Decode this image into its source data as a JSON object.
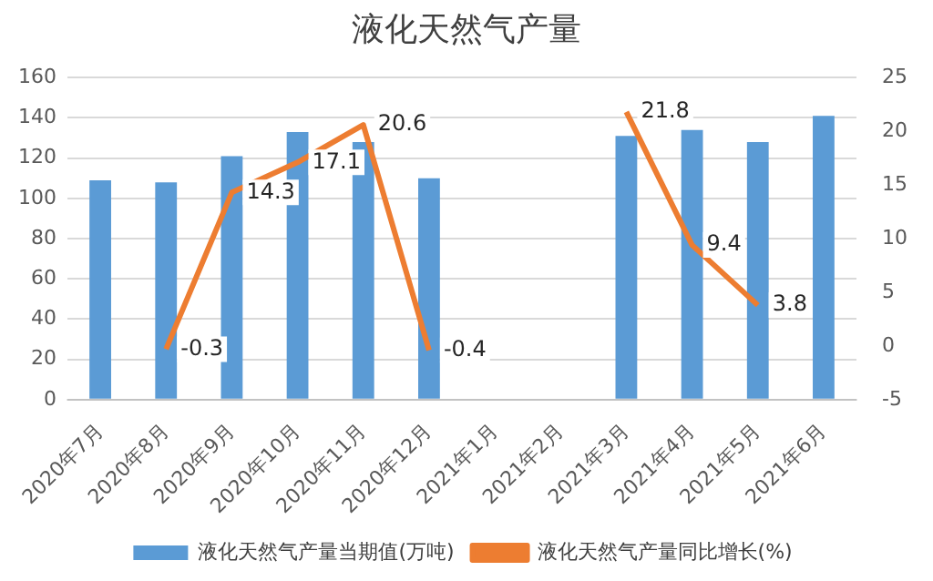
{
  "chart_data": {
    "type": "bar",
    "title": "液化天然气产量",
    "categories": [
      "2020年7月",
      "2020年8月",
      "2020年9月",
      "2020年10月",
      "2020年11月",
      "2020年12月",
      "2021年1月",
      "2021年2月",
      "2021年3月",
      "2021年4月",
      "2021年5月",
      "2021年6月"
    ],
    "series": [
      {
        "name": "液化天然气产量当期值(万吨)",
        "color": "#5b9bd5",
        "values": [
          109,
          108,
          121,
          133,
          128,
          110,
          null,
          null,
          131,
          134,
          128,
          141
        ]
      },
      {
        "name": "液化天然气产量同比增长(%)",
        "type": "line",
        "axis": "y2",
        "color": "#ed7d31",
        "values": [
          null,
          -0.3,
          14.3,
          17.1,
          20.6,
          -0.4,
          null,
          null,
          21.8,
          9.4,
          3.8,
          null
        ],
        "value_labels": [
          null,
          "-0.3",
          "14.3",
          "17.1",
          "20.6",
          "-0.4",
          null,
          null,
          "21.8",
          "9.4",
          "3.8",
          null
        ]
      }
    ],
    "ylim": [
      0,
      160
    ],
    "yticks": [
      0,
      20,
      40,
      60,
      80,
      100,
      120,
      140,
      160
    ],
    "y2lim": [
      -5,
      25
    ],
    "y2ticks": [
      -5,
      0,
      5,
      10,
      15,
      20,
      25
    ],
    "grid": "y",
    "legend": "bottom",
    "marker": "none"
  }
}
